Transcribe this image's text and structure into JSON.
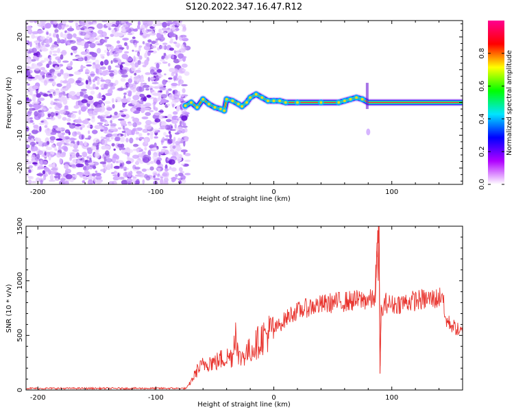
{
  "title": "S120.2022.347.16.47.R12",
  "chart_data": [
    {
      "type": "heatmap",
      "xlabel": "Height of straight line (km)",
      "ylabel": "Frequency (Hz)",
      "xlim": [
        -210,
        160
      ],
      "ylim": [
        -25,
        25
      ],
      "xticks": [
        -200,
        -100,
        0,
        100
      ],
      "yticks": [
        -20,
        -10,
        0,
        10,
        20
      ],
      "noise_region": {
        "x": [
          -210,
          -73
        ],
        "y": [
          -25,
          25
        ]
      },
      "signal_path": [
        {
          "x": -75,
          "y": -1
        },
        {
          "x": -70,
          "y": 0
        },
        {
          "x": -65,
          "y": -1.5
        },
        {
          "x": -60,
          "y": 1
        },
        {
          "x": -55,
          "y": -0.5
        },
        {
          "x": -50,
          "y": -1.5
        },
        {
          "x": -45,
          "y": -2
        },
        {
          "x": -42,
          "y": -2.5
        },
        {
          "x": -40,
          "y": 1
        },
        {
          "x": -35,
          "y": 0.5
        },
        {
          "x": -30,
          "y": -0.5
        },
        {
          "x": -27,
          "y": -1.2
        },
        {
          "x": -23,
          "y": 0
        },
        {
          "x": -20,
          "y": 1.5
        },
        {
          "x": -15,
          "y": 2.5
        },
        {
          "x": -10,
          "y": 1.5
        },
        {
          "x": -5,
          "y": 0.5
        },
        {
          "x": 0,
          "y": 0.5
        },
        {
          "x": 5,
          "y": 0.5
        },
        {
          "x": 10,
          "y": 0
        },
        {
          "x": 20,
          "y": 0
        },
        {
          "x": 40,
          "y": 0
        },
        {
          "x": 55,
          "y": 0
        },
        {
          "x": 60,
          "y": 0.5
        },
        {
          "x": 65,
          "y": 1
        },
        {
          "x": 70,
          "y": 1.5
        },
        {
          "x": 75,
          "y": 1
        },
        {
          "x": 80,
          "y": 0
        },
        {
          "x": 100,
          "y": 0
        },
        {
          "x": 130,
          "y": 0
        },
        {
          "x": 160,
          "y": 0
        }
      ],
      "colorbar": {
        "label": "Normalized spectral amplitude",
        "ticks": [
          0.0,
          0.2,
          0.4,
          0.6,
          0.8
        ],
        "tick_labels": [
          "0.0",
          "0.2",
          "0.4",
          "0.6",
          "0.8"
        ],
        "range": [
          0,
          1
        ],
        "colors": [
          "#ffffff",
          "#b000ff",
          "#0000ff",
          "#00e5ff",
          "#00ff00",
          "#ffff00",
          "#ff0000",
          "#ff0090"
        ]
      }
    },
    {
      "type": "line",
      "xlabel": "Height of straight line (km)",
      "ylabel": "SNR (10 * v/v)",
      "xlim": [
        -210,
        160
      ],
      "ylim": [
        0,
        1500
      ],
      "xticks": [
        -200,
        -100,
        0,
        100
      ],
      "yticks": [
        0,
        500,
        1000,
        1500
      ],
      "series": [
        {
          "color": "#e8312b",
          "points": [
            [
              -210,
              15
            ],
            [
              -150,
              15
            ],
            [
              -100,
              15
            ],
            [
              -74,
              15
            ],
            [
              -70,
              80
            ],
            [
              -65,
              180
            ],
            [
              -60,
              230
            ],
            [
              -55,
              260
            ],
            [
              -50,
              250
            ],
            [
              -45,
              280
            ],
            [
              -40,
              300
            ],
            [
              -35,
              310
            ],
            [
              -32,
              600
            ],
            [
              -30,
              280
            ],
            [
              -25,
              330
            ],
            [
              -20,
              360
            ],
            [
              -15,
              420
            ],
            [
              -10,
              480
            ],
            [
              -5,
              520
            ],
            [
              0,
              550
            ],
            [
              5,
              600
            ],
            [
              10,
              650
            ],
            [
              15,
              700
            ],
            [
              20,
              720
            ],
            [
              25,
              740
            ],
            [
              30,
              760
            ],
            [
              40,
              780
            ],
            [
              50,
              800
            ],
            [
              60,
              810
            ],
            [
              70,
              820
            ],
            [
              80,
              830
            ],
            [
              85,
              820
            ],
            [
              88,
              1300
            ],
            [
              89,
              1550
            ],
            [
              90,
              150
            ],
            [
              91,
              700
            ],
            [
              95,
              800
            ],
            [
              100,
              780
            ],
            [
              110,
              800
            ],
            [
              120,
              820
            ],
            [
              130,
              830
            ],
            [
              140,
              840
            ],
            [
              143,
              900
            ],
            [
              145,
              650
            ],
            [
              150,
              600
            ],
            [
              155,
              560
            ],
            [
              160,
              520
            ]
          ]
        }
      ]
    }
  ]
}
